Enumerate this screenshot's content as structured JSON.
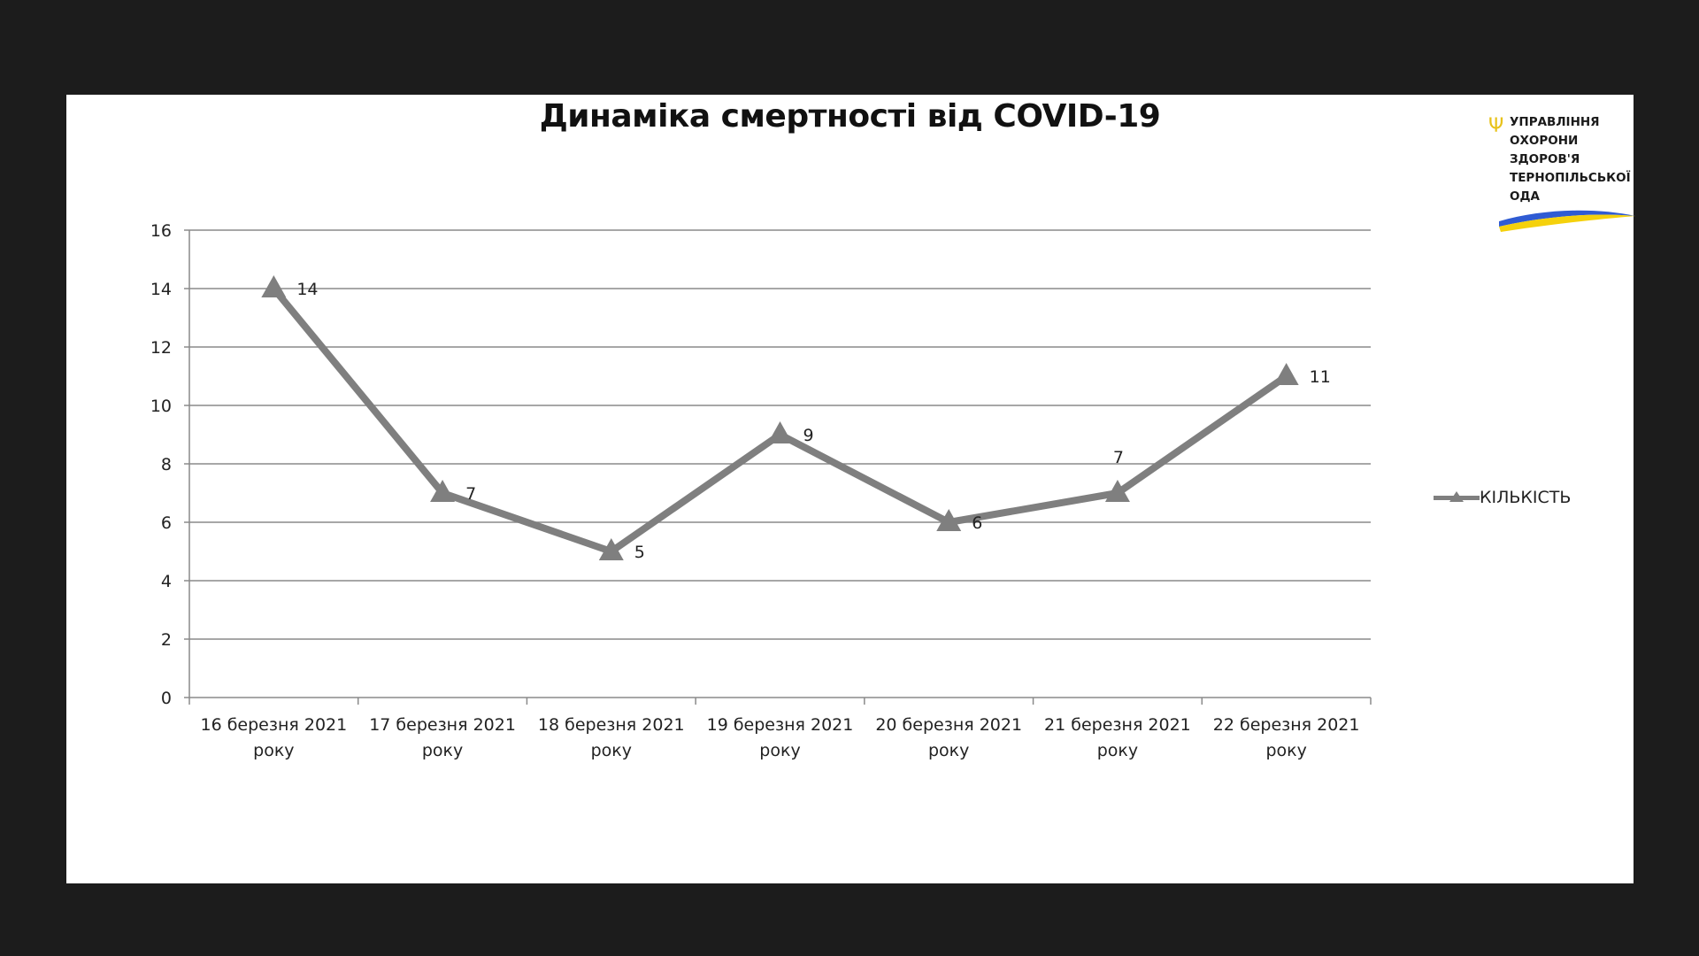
{
  "logo": {
    "lines": [
      "УПРАВЛІННЯ",
      "ОХОРОНИ",
      "ЗДОРОВ'Я",
      "ТЕРНОПІЛЬСЬКОЇ",
      "ОДА"
    ],
    "trident_glyph": "Ψ",
    "colors": {
      "blue": "#2f5bd3",
      "yellow": "#f5d10c"
    }
  },
  "chart_data": {
    "type": "line",
    "title": "Динаміка смертності від COVID-19",
    "categories": [
      "16 березня 2021 року",
      "17 березня 2021 року",
      "18 березня 2021 року",
      "19 березня 2021 року",
      "20 березня 2021 року",
      "21 березня 2021 року",
      "22 березня 2021 року"
    ],
    "series": [
      {
        "name": "КІЛЬКІСТЬ",
        "values": [
          14,
          7,
          5,
          9,
          6,
          7,
          11
        ],
        "color": "#7f7f7f",
        "marker": "triangle"
      }
    ],
    "ylim": [
      0,
      16
    ],
    "yticks": [
      0,
      2,
      4,
      6,
      8,
      10,
      12,
      14,
      16
    ],
    "grid": true,
    "legend": "right",
    "data_labels": true
  }
}
